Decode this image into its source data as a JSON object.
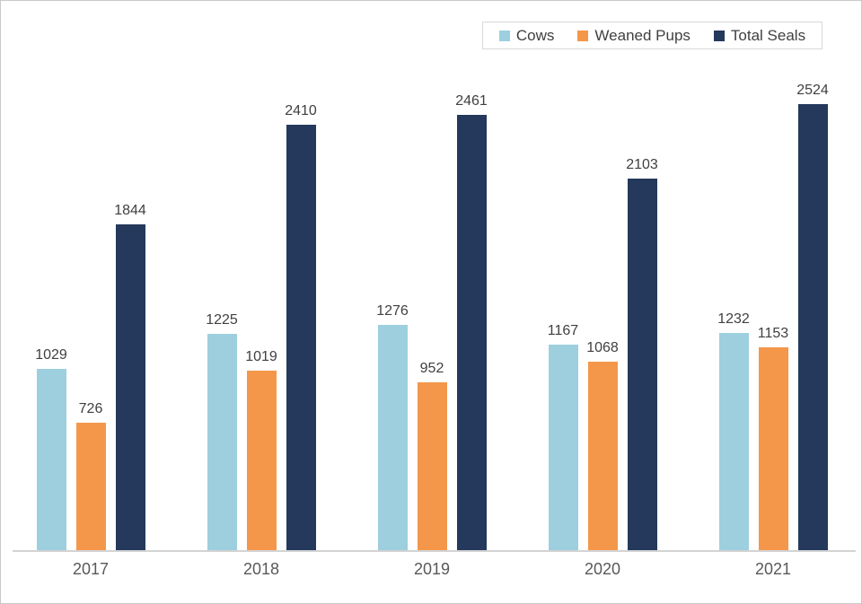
{
  "chart_data": {
    "type": "bar",
    "title": "",
    "xlabel": "",
    "ylabel": "",
    "categories": [
      "2017",
      "2018",
      "2019",
      "2020",
      "2021"
    ],
    "series": [
      {
        "name": "Cows",
        "color": "#9DCFDF",
        "values": [
          1029,
          1225,
          1276,
          1167,
          1232
        ]
      },
      {
        "name": "Weaned Pups",
        "color": "#F4974A",
        "values": [
          726,
          1019,
          952,
          1068,
          1153
        ]
      },
      {
        "name": "Total Seals",
        "color": "#24395B",
        "values": [
          1844,
          2410,
          2461,
          2103,
          2524
        ]
      }
    ],
    "ylim": [
      0,
      2700
    ],
    "grid": false,
    "y_axis_visible": false,
    "data_labels": true,
    "legend_position": "top-right",
    "colors": {
      "value_label": "#404040",
      "axis_label": "#595959",
      "axis_line": "#D3D3D3",
      "legend_border": "#D9D9D9",
      "background": "#FFFFFF"
    }
  }
}
